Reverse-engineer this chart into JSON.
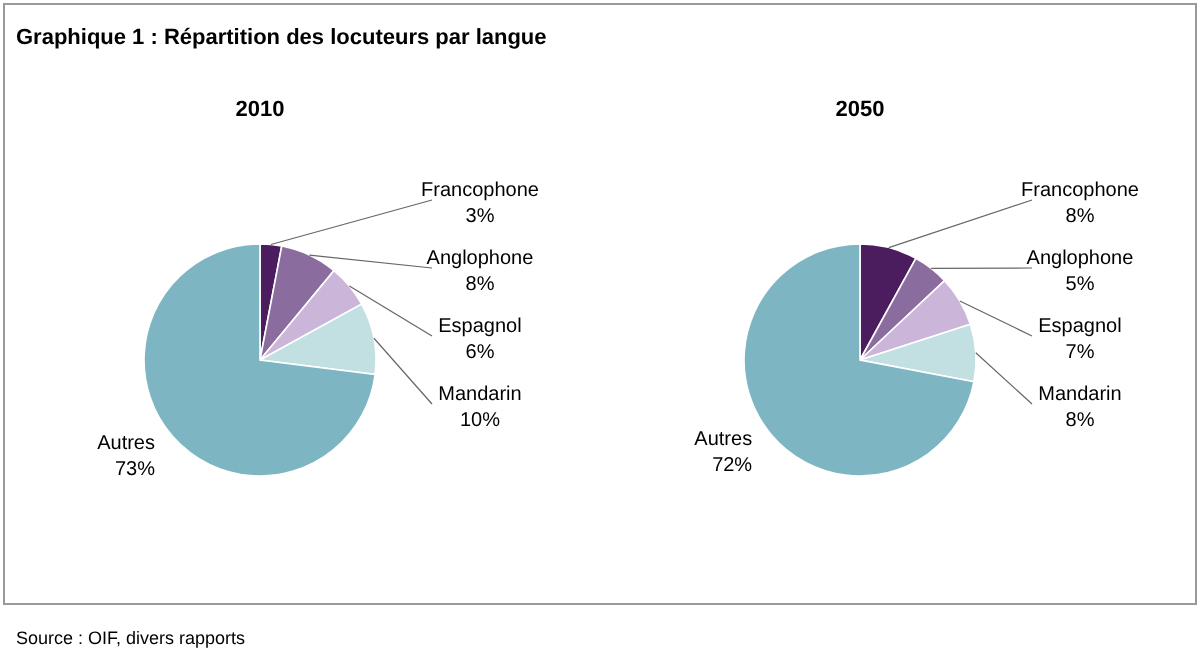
{
  "chart_data": [
    {
      "type": "pie",
      "title": "2010",
      "annotations": [
        "Graphique 1 : Répartition des locuteurs par langue"
      ],
      "categories": [
        "Francophone",
        "Anglophone",
        "Espagnol",
        "Mandarin",
        "Autres"
      ],
      "values": [
        3,
        8,
        6,
        10,
        73
      ],
      "value_labels": [
        "3%",
        "8%",
        "6%",
        "10%",
        "73%"
      ],
      "colors": [
        "#4b1d5e",
        "#8b6c9f",
        "#cbb5d8",
        "#c2e0e2",
        "#7db6c2"
      ]
    },
    {
      "type": "pie",
      "title": "2050",
      "annotations": [
        "Source : OIF, divers rapports"
      ],
      "categories": [
        "Francophone",
        "Anglophone",
        "Espagnol",
        "Mandarin",
        "Autres"
      ],
      "values": [
        8,
        5,
        7,
        8,
        72
      ],
      "value_labels": [
        "8%",
        "5%",
        "7%",
        "8%",
        "72%"
      ],
      "colors": [
        "#4b1d5e",
        "#8b6c9f",
        "#cbb5d8",
        "#c2e0e2",
        "#7db6c2"
      ]
    }
  ]
}
